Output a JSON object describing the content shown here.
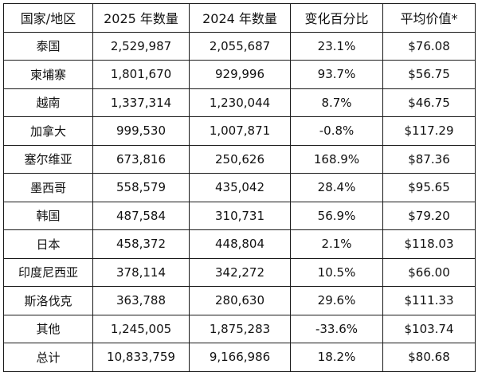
{
  "table": {
    "headers": [
      "国家/地区",
      "2025 年数量",
      "2024 年数量",
      "变化百分比",
      "平均价值*"
    ],
    "rows": [
      [
        "泰国",
        "2,529,987",
        "2,055,687",
        "23.1%",
        "$76.08"
      ],
      [
        "柬埔寨",
        "1,801,670",
        "929,996",
        "93.7%",
        "$56.75"
      ],
      [
        "越南",
        "1,337,314",
        "1,230,044",
        "8.7%",
        "$46.75"
      ],
      [
        "加拿大",
        "999,530",
        "1,007,871",
        "-0.8%",
        "$117.29"
      ],
      [
        "塞尔维亚",
        "673,816",
        "250,626",
        "168.9%",
        "$87.36"
      ],
      [
        "墨西哥",
        "558,579",
        "435,042",
        "28.4%",
        "$95.65"
      ],
      [
        "韩国",
        "487,584",
        "310,731",
        "56.9%",
        "$79.20"
      ],
      [
        "日本",
        "458,372",
        "448,804",
        "2.1%",
        "$118.03"
      ],
      [
        "印度尼西亚",
        "378,114",
        "342,272",
        "10.5%",
        "$66.00"
      ],
      [
        "斯洛伐克",
        "363,788",
        "280,630",
        "29.6%",
        "$111.33"
      ],
      [
        "其他",
        "1,245,005",
        "1,875,283",
        "-33.6%",
        "$103.74"
      ],
      [
        "总计",
        "10,833,759",
        "9,166,986",
        "18.2%",
        "$80.68"
      ]
    ]
  }
}
